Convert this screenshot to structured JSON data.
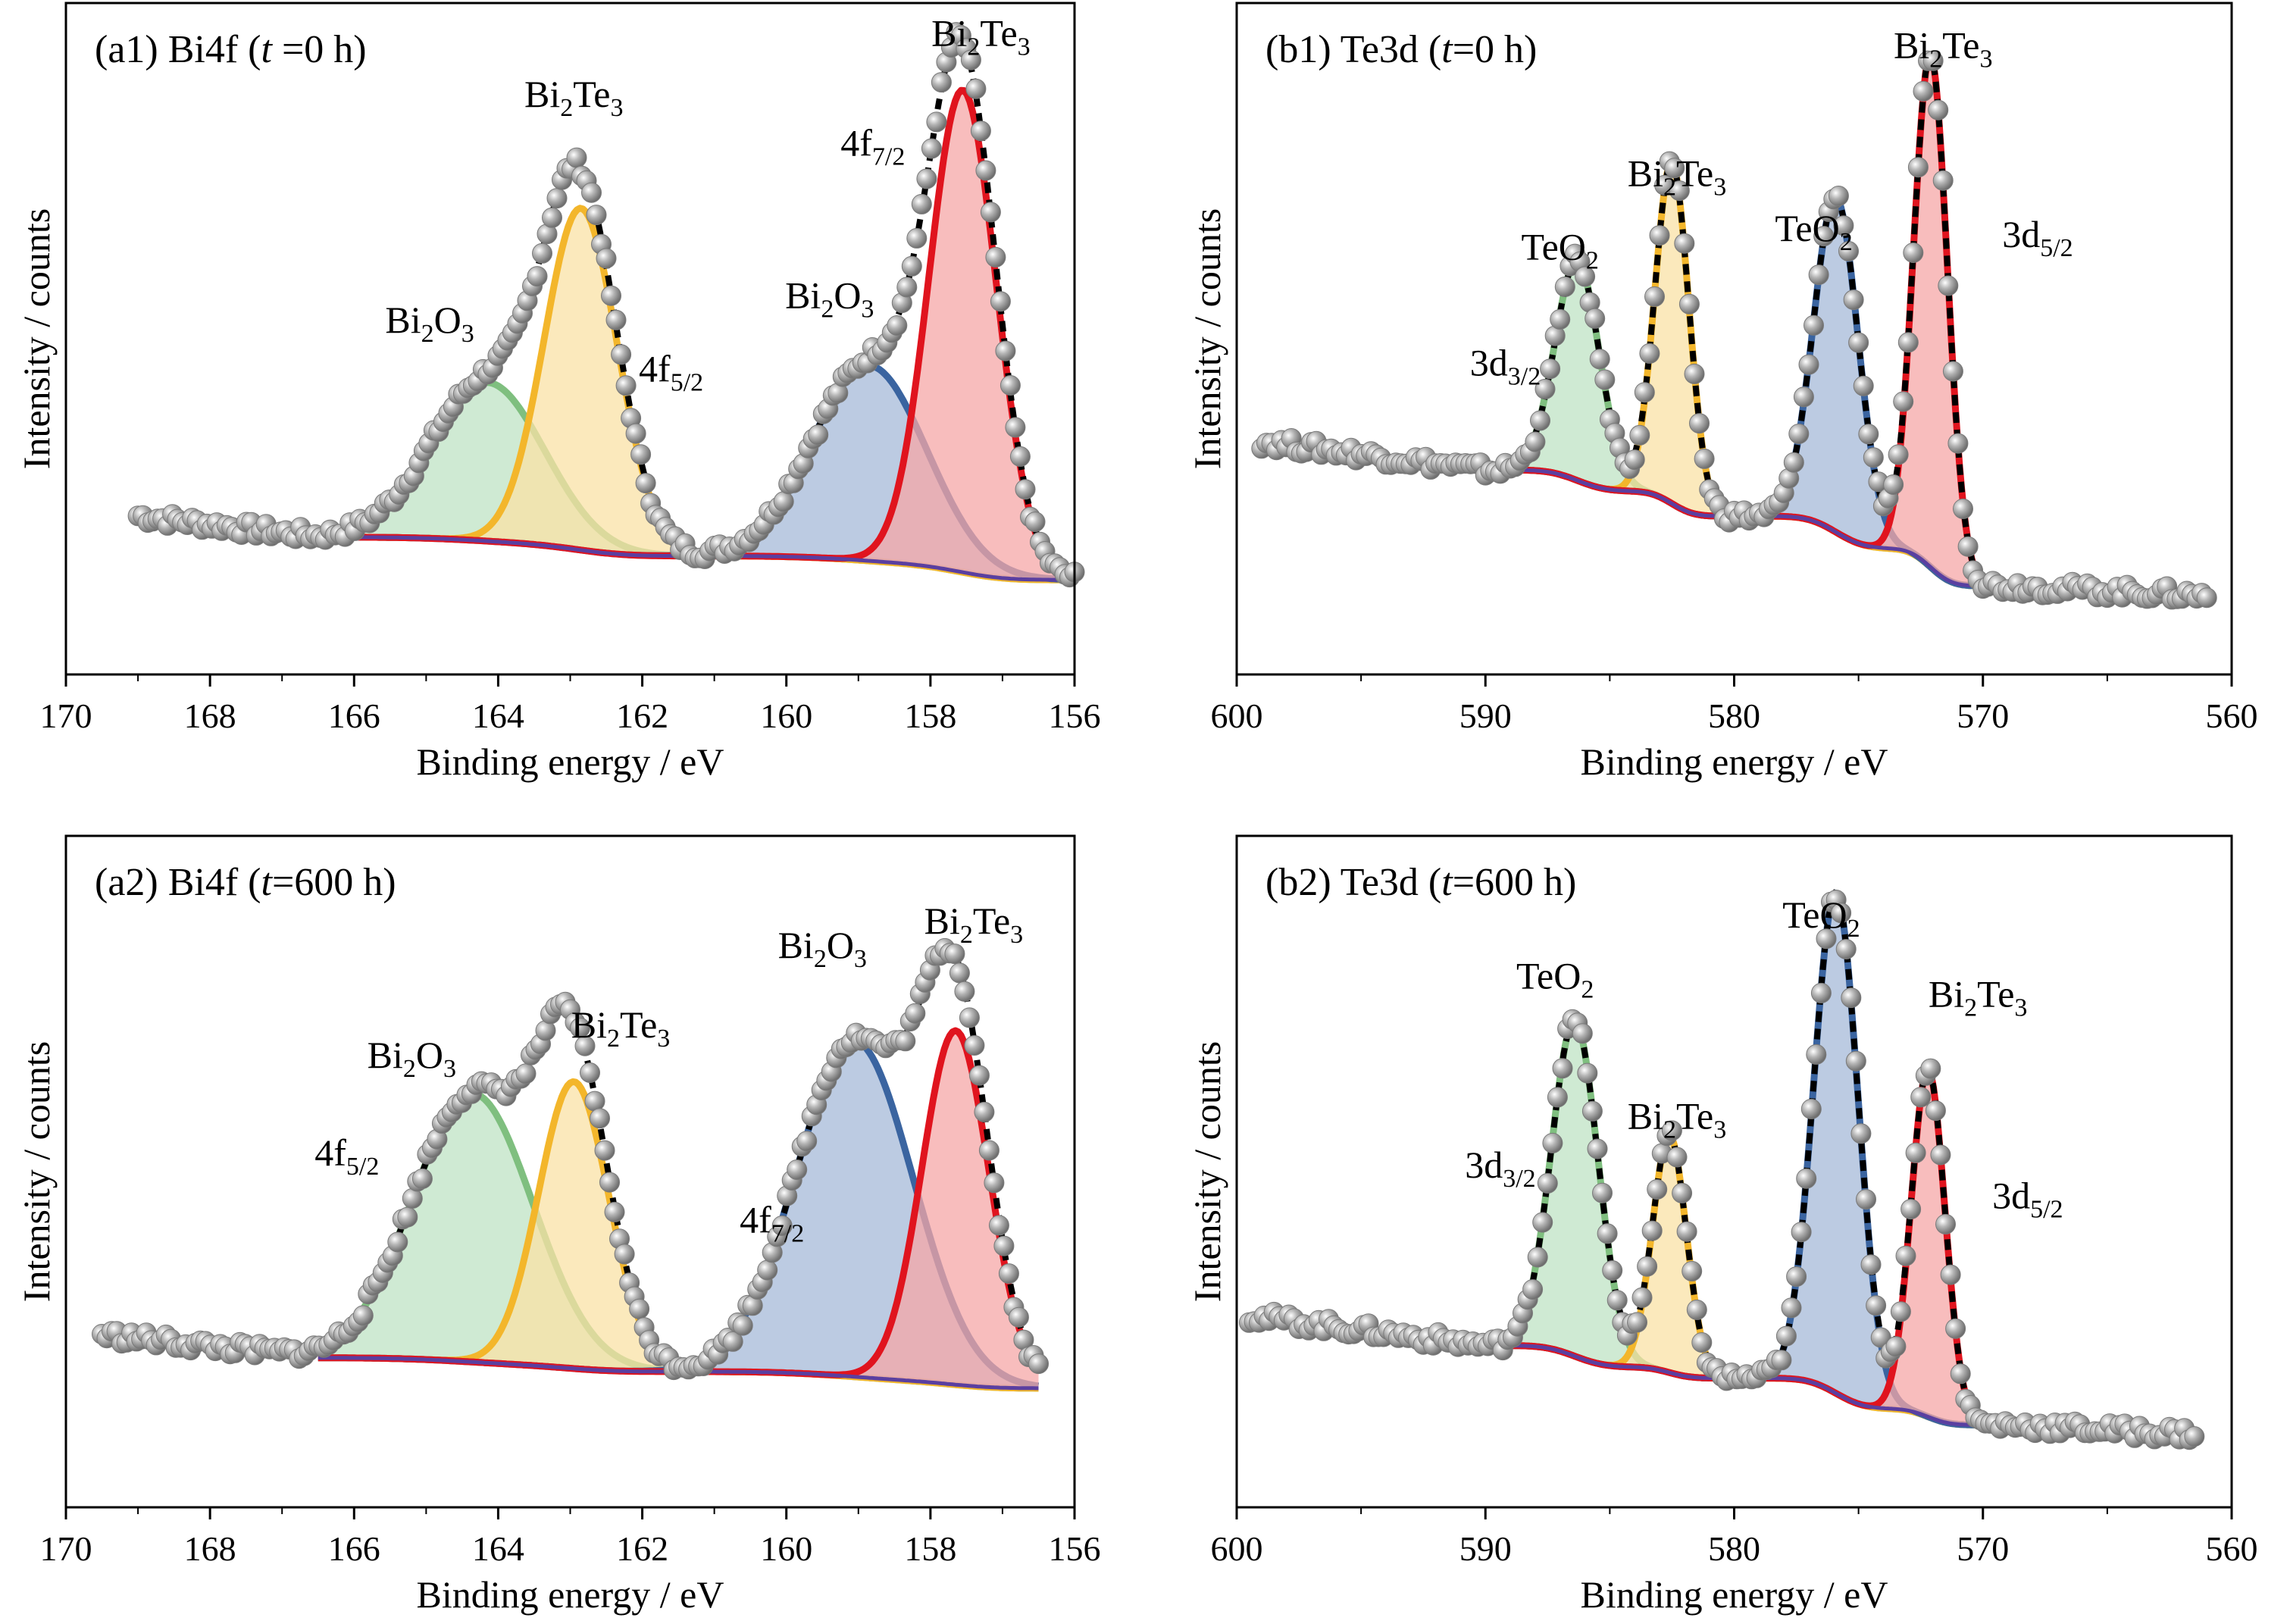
{
  "chart_data": [
    {
      "type": "line",
      "title": "(a1) Bi4f (t =0 h)",
      "title_parts": [
        "(a1) Bi4f (",
        "t",
        " =0 h)"
      ],
      "xlabel": "Binding energy / eV",
      "ylabel": "Intensity / counts",
      "xlim": [
        170,
        156
      ],
      "ylim": [
        0,
        1.1
      ],
      "x_ticks": [
        170,
        168,
        166,
        164,
        162,
        160,
        158,
        156
      ],
      "x_tick_labels": [
        "170",
        "168",
        "166",
        "164",
        "162",
        "160",
        "158",
        "156"
      ],
      "grid": false,
      "data_range": [
        169,
        156
      ],
      "fit_range": [
        166.5,
        156
      ],
      "background": {
        "left": 0.225,
        "right": 0.155
      },
      "raw_noise": 0.012,
      "peaks": [
        {
          "name": "Bi2O3 4f5/2",
          "center": 164.15,
          "fwhm": 1.85,
          "height": 0.26,
          "color": "#7fbf7f",
          "fill": "#bfe3c4"
        },
        {
          "name": "Bi2Te3 4f5/2",
          "center": 162.85,
          "fwhm": 1.2,
          "height": 0.56,
          "color": "#f3b62b",
          "fill": "#fae2a6"
        },
        {
          "name": "Bi2O3 4f7/2",
          "center": 158.85,
          "fwhm": 1.85,
          "height": 0.32,
          "color": "#3a64a0",
          "fill": "#a6b9d8"
        },
        {
          "name": "Bi2Te3 4f7/2",
          "center": 157.55,
          "fwhm": 1.1,
          "height": 0.79,
          "color": "#e0141e",
          "fill": "#f5a7a7"
        }
      ],
      "annotations": [
        {
          "text": [
            "Bi",
            "2",
            "O",
            "3",
            ""
          ],
          "x": 164.95,
          "y": 0.56
        },
        {
          "text": [
            "Bi",
            "2",
            "Te",
            "3",
            ""
          ],
          "x": 162.95,
          "y": 0.93
        },
        {
          "text": [
            "4f",
            "5/2",
            "",
            "",
            ""
          ],
          "x": 161.6,
          "y": 0.48
        },
        {
          "text": [
            "Bi",
            "2",
            "O",
            "3",
            ""
          ],
          "x": 159.4,
          "y": 0.6
        },
        {
          "text": [
            "4f",
            "7/2",
            "",
            "",
            ""
          ],
          "x": 158.8,
          "y": 0.85
        },
        {
          "text": [
            "Bi",
            "2",
            "Te",
            "3",
            ""
          ],
          "x": 157.3,
          "y": 1.03
        }
      ]
    },
    {
      "type": "line",
      "title": "(b1) Te3d (t=0 h)",
      "title_parts": [
        "(b1) Te3d (",
        "t",
        "=0 h)"
      ],
      "xlabel": "Binding energy / eV",
      "ylabel": "Intensity / counts",
      "xlim": [
        600,
        560
      ],
      "ylim": [
        0,
        1.1
      ],
      "x_ticks": [
        600,
        590,
        580,
        570,
        560
      ],
      "x_tick_labels": [
        "600",
        "590",
        "580",
        "570",
        "560"
      ],
      "grid": false,
      "data_range": [
        599,
        561
      ],
      "fit_range": [
        590,
        569
      ],
      "background": {
        "left": 0.335,
        "right": 0.145
      },
      "raw_noise": 0.012,
      "peaks": [
        {
          "name": "TeO2 3d3/2",
          "center": 586.3,
          "fwhm": 2.1,
          "height": 0.36,
          "color": "#7fbf7f",
          "fill": "#bfe3c4"
        },
        {
          "name": "Bi2Te3 3d3/2",
          "center": 582.5,
          "fwhm": 1.6,
          "height": 0.56,
          "color": "#f3b62b",
          "fill": "#fae2a6"
        },
        {
          "name": "TeO2 3d5/2",
          "center": 575.9,
          "fwhm": 2.1,
          "height": 0.55,
          "color": "#3a64a0",
          "fill": "#a6b9d8"
        },
        {
          "name": "Bi2Te3 3d5/2",
          "center": 572.1,
          "fwhm": 1.6,
          "height": 0.84,
          "color": "#e0141e",
          "fill": "#f5a7a7"
        }
      ],
      "annotations": [
        {
          "text": [
            "3d",
            "3/2",
            "",
            "",
            ""
          ],
          "x": 589.2,
          "y": 0.49
        },
        {
          "text": [
            "TeO",
            "2",
            "",
            "",
            ""
          ],
          "x": 587.0,
          "y": 0.68
        },
        {
          "text": [
            "Bi",
            "2",
            "Te",
            "3",
            ""
          ],
          "x": 582.3,
          "y": 0.8
        },
        {
          "text": [
            "TeO",
            "2",
            "",
            "",
            ""
          ],
          "x": 576.8,
          "y": 0.71
        },
        {
          "text": [
            "Bi",
            "2",
            "Te",
            "3",
            ""
          ],
          "x": 571.6,
          "y": 1.01
        },
        {
          "text": [
            "3d",
            "5/2",
            "",
            "",
            ""
          ],
          "x": 567.8,
          "y": 0.7
        }
      ]
    },
    {
      "type": "line",
      "title": "(a2) Bi4f (t=600 h)",
      "title_parts": [
        "(a2) Bi4f (",
        "t",
        "=600 h)"
      ],
      "xlabel": "Binding energy / eV",
      "ylabel": "Intensity / counts",
      "xlim": [
        170,
        156
      ],
      "ylim": [
        0,
        1.1
      ],
      "x_ticks": [
        170,
        168,
        166,
        164,
        162,
        160,
        158,
        156
      ],
      "x_tick_labels": [
        "170",
        "168",
        "166",
        "164",
        "162",
        "160",
        "158",
        "156"
      ],
      "grid": false,
      "data_range": [
        169.5,
        156.5
      ],
      "fit_range": [
        166.5,
        156.5
      ],
      "background": {
        "left": 0.245,
        "right": 0.195
      },
      "raw_noise": 0.012,
      "peaks": [
        {
          "name": "Bi2O3 4f5/2",
          "center": 164.35,
          "fwhm": 1.95,
          "height": 0.44,
          "color": "#7fbf7f",
          "fill": "#bfe3c4"
        },
        {
          "name": "Bi2Te3 4f5/2",
          "center": 162.95,
          "fwhm": 1.15,
          "height": 0.47,
          "color": "#f3b62b",
          "fill": "#fae2a6"
        },
        {
          "name": "Bi2O3 4f7/2",
          "center": 159.05,
          "fwhm": 1.9,
          "height": 0.55,
          "color": "#3a64a0",
          "fill": "#a6b9d8"
        },
        {
          "name": "Bi2Te3 4f7/2",
          "center": 157.65,
          "fwhm": 1.1,
          "height": 0.58,
          "color": "#e0141e",
          "fill": "#f5a7a7"
        }
      ],
      "annotations": [
        {
          "text": [
            "Bi",
            "2",
            "O",
            "3",
            ""
          ],
          "x": 165.2,
          "y": 0.72
        },
        {
          "text": [
            "Bi",
            "2",
            "Te",
            "3",
            ""
          ],
          "x": 162.3,
          "y": 0.77
        },
        {
          "text": [
            "4f",
            "5/2",
            "",
            "",
            ""
          ],
          "x": 166.1,
          "y": 0.56
        },
        {
          "text": [
            "Bi",
            "2",
            "O",
            "3",
            ""
          ],
          "x": 159.5,
          "y": 0.9
        },
        {
          "text": [
            "4f",
            "7/2",
            "",
            "",
            ""
          ],
          "x": 160.2,
          "y": 0.45
        },
        {
          "text": [
            "Bi",
            "2",
            "Te",
            "3",
            ""
          ],
          "x": 157.4,
          "y": 0.94
        }
      ]
    },
    {
      "type": "line",
      "title": "(b2) Te3d (t=600 h)",
      "title_parts": [
        "(b2) Te3d (",
        "t",
        "=600 h)"
      ],
      "xlabel": "Binding energy / eV",
      "ylabel": "Intensity / counts",
      "xlim": [
        600,
        560
      ],
      "ylim": [
        0,
        1.1
      ],
      "x_ticks": [
        600,
        590,
        580,
        570,
        560
      ],
      "x_tick_labels": [
        "600",
        "590",
        "580",
        "570",
        "560"
      ],
      "grid": false,
      "data_range": [
        599.5,
        561.5
      ],
      "fit_range": [
        590,
        569
      ],
      "background": {
        "left": 0.265,
        "right": 0.135
      },
      "raw_noise": 0.012,
      "peaks": [
        {
          "name": "TeO2 3d3/2",
          "center": 586.4,
          "fwhm": 2.2,
          "height": 0.55,
          "color": "#7fbf7f",
          "fill": "#bfe3c4"
        },
        {
          "name": "Bi2Te3 3d3/2",
          "center": 582.6,
          "fwhm": 1.6,
          "height": 0.39,
          "color": "#f3b62b",
          "fill": "#fae2a6"
        },
        {
          "name": "TeO2 3d5/2",
          "center": 575.9,
          "fwhm": 2.1,
          "height": 0.82,
          "color": "#3a64a0",
          "fill": "#a6b9d8"
        },
        {
          "name": "Bi2Te3 3d5/2",
          "center": 572.2,
          "fwhm": 1.6,
          "height": 0.57,
          "color": "#e0141e",
          "fill": "#f5a7a7"
        }
      ],
      "annotations": [
        {
          "text": [
            "3d",
            "3/2",
            "",
            "",
            ""
          ],
          "x": 589.4,
          "y": 0.54
        },
        {
          "text": [
            "TeO",
            "2",
            "",
            "",
            ""
          ],
          "x": 587.2,
          "y": 0.85
        },
        {
          "text": [
            "Bi",
            "2",
            "Te",
            "3",
            ""
          ],
          "x": 582.3,
          "y": 0.62
        },
        {
          "text": [
            "TeO",
            "2",
            "",
            "",
            ""
          ],
          "x": 576.5,
          "y": 0.95
        },
        {
          "text": [
            "Bi",
            "2",
            "Te",
            "3",
            ""
          ],
          "x": 570.2,
          "y": 0.82
        },
        {
          "text": [
            "3d",
            "5/2",
            "",
            "",
            ""
          ],
          "x": 568.2,
          "y": 0.49
        }
      ]
    }
  ],
  "colors": {
    "raw_points": "#9a9a9a",
    "background": "#5a3fa0",
    "envelope": "#000000"
  }
}
